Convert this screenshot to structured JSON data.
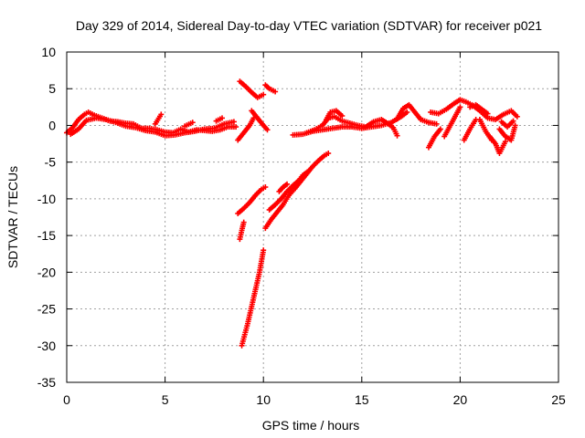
{
  "chart_data": {
    "type": "scatter",
    "title": "Day 329 of 2014, Sidereal Day-to-day VTEC variation (SDTVAR) for receiver p021",
    "xlabel": "GPS time / hours",
    "ylabel": "SDTVAR / TECUs",
    "xlim": [
      0,
      25
    ],
    "ylim": [
      -35,
      10
    ],
    "xticks": [
      0,
      5,
      10,
      15,
      20,
      25
    ],
    "yticks": [
      10,
      5,
      0,
      -5,
      -10,
      -15,
      -20,
      -25,
      -30,
      -35
    ],
    "grid": true,
    "marker": "+",
    "color": "#ff0000",
    "segments": [
      [
        [
          0,
          -1.0
        ],
        [
          0.3,
          -0.3
        ],
        [
          0.6,
          0.8
        ],
        [
          0.9,
          1.5
        ],
        [
          1.1,
          1.8
        ],
        [
          1.4,
          1.4
        ],
        [
          1.8,
          1.0
        ],
        [
          2.2,
          0.6
        ],
        [
          2.6,
          0.5
        ],
        [
          3.0,
          0.3
        ],
        [
          3.4,
          0.2
        ],
        [
          3.8,
          -0.4
        ],
        [
          4.2,
          -0.4
        ],
        [
          4.6,
          -0.6
        ],
        [
          5.0,
          -0.9
        ],
        [
          5.4,
          -1.0
        ],
        [
          5.8,
          -0.5
        ],
        [
          6.2,
          -0.9
        ],
        [
          6.6,
          -0.6
        ],
        [
          7.0,
          -0.7
        ],
        [
          7.4,
          -0.8
        ],
        [
          7.8,
          -0.6
        ],
        [
          8.2,
          -0.2
        ],
        [
          8.6,
          -0.2
        ]
      ],
      [
        [
          0.2,
          -1.2
        ],
        [
          0.6,
          -0.5
        ],
        [
          1.0,
          0.7
        ],
        [
          1.5,
          1.0
        ],
        [
          2.0,
          0.8
        ],
        [
          2.5,
          0.4
        ],
        [
          3.0,
          -0.1
        ],
        [
          3.5,
          -0.3
        ],
        [
          4.0,
          -0.7
        ],
        [
          4.5,
          -0.9
        ],
        [
          5.0,
          -1.4
        ],
        [
          5.5,
          -1.3
        ],
        [
          6.0,
          -1.0
        ],
        [
          6.5,
          -0.8
        ],
        [
          7.0,
          -0.5
        ],
        [
          7.5,
          -0.4
        ],
        [
          8.0,
          0.2
        ],
        [
          8.5,
          0.5
        ]
      ],
      [
        [
          4.5,
          0.2
        ],
        [
          4.8,
          1.5
        ]
      ],
      [
        [
          6.0,
          -0.1
        ],
        [
          6.4,
          0.4
        ]
      ],
      [
        [
          7.6,
          0.6
        ],
        [
          7.9,
          1.0
        ]
      ],
      [
        [
          8.8,
          6.0
        ],
        [
          9.1,
          5.3
        ],
        [
          9.4,
          4.5
        ],
        [
          9.7,
          3.8
        ],
        [
          10.0,
          4.2
        ]
      ],
      [
        [
          10.1,
          5.5
        ],
        [
          10.3,
          5.0
        ],
        [
          10.6,
          4.6
        ]
      ],
      [
        [
          9.4,
          2.0
        ],
        [
          9.7,
          1.0
        ],
        [
          10.0,
          0.0
        ],
        [
          10.2,
          -0.6
        ]
      ],
      [
        [
          8.7,
          -2.0
        ],
        [
          9.0,
          -1.0
        ],
        [
          9.3,
          0.0
        ],
        [
          9.5,
          1.0
        ]
      ],
      [
        [
          8.7,
          -12.0
        ],
        [
          9.0,
          -11.3
        ],
        [
          9.3,
          -10.5
        ],
        [
          9.6,
          -9.5
        ],
        [
          9.9,
          -8.7
        ],
        [
          10.1,
          -8.4
        ]
      ],
      [
        [
          8.8,
          -15.5
        ],
        [
          8.9,
          -14.3
        ],
        [
          9.0,
          -13.2
        ]
      ],
      [
        [
          8.9,
          -30.0
        ],
        [
          9.2,
          -27.0
        ],
        [
          9.5,
          -23.5
        ],
        [
          9.8,
          -20.0
        ],
        [
          10.0,
          -17.0
        ]
      ],
      [
        [
          10.1,
          -14.0
        ],
        [
          10.4,
          -12.8
        ],
        [
          10.7,
          -11.8
        ],
        [
          11.0,
          -10.8
        ],
        [
          11.3,
          -9.5
        ],
        [
          11.6,
          -8.6
        ],
        [
          11.9,
          -7.6
        ],
        [
          12.2,
          -6.6
        ],
        [
          12.5,
          -5.6
        ],
        [
          12.8,
          -4.8
        ],
        [
          13.1,
          -4.1
        ],
        [
          13.3,
          -3.8
        ]
      ],
      [
        [
          10.3,
          -11.5
        ],
        [
          10.6,
          -10.8
        ],
        [
          10.9,
          -10.0
        ],
        [
          11.2,
          -9.0
        ],
        [
          11.5,
          -8.2
        ],
        [
          11.8,
          -7.5
        ],
        [
          12.0,
          -6.8
        ],
        [
          12.3,
          -6.2
        ]
      ],
      [
        [
          10.8,
          -9.0
        ],
        [
          11.0,
          -8.4
        ],
        [
          11.2,
          -8.0
        ]
      ],
      [
        [
          11.5,
          -1.3
        ],
        [
          12.0,
          -1.2
        ],
        [
          12.5,
          -0.8
        ],
        [
          13.0,
          -0.6
        ],
        [
          13.5,
          -0.4
        ],
        [
          14.0,
          -0.2
        ],
        [
          14.5,
          -0.2
        ],
        [
          15.0,
          -0.4
        ],
        [
          15.5,
          -0.2
        ],
        [
          16.0,
          0.0
        ],
        [
          16.5,
          0.4
        ],
        [
          17.0,
          1.2
        ],
        [
          17.3,
          1.8
        ]
      ],
      [
        [
          12.2,
          -1.0
        ],
        [
          12.6,
          -0.6
        ],
        [
          13.0,
          0.0
        ],
        [
          13.3,
          1.0
        ],
        [
          13.6,
          1.2
        ],
        [
          14.0,
          0.6
        ],
        [
          14.4,
          0.3
        ],
        [
          14.8,
          0.0
        ],
        [
          15.2,
          -0.2
        ],
        [
          15.6,
          0.5
        ],
        [
          16.0,
          0.8
        ],
        [
          16.3,
          0.3
        ],
        [
          16.6,
          -0.3
        ],
        [
          16.8,
          -1.4
        ]
      ],
      [
        [
          13.2,
          0.8
        ],
        [
          13.4,
          1.8
        ],
        [
          13.7,
          2.0
        ],
        [
          14.0,
          1.3
        ]
      ],
      [
        [
          16.8,
          0.9
        ],
        [
          17.1,
          2.3
        ],
        [
          17.4,
          2.8
        ],
        [
          17.7,
          1.8
        ],
        [
          18.0,
          0.8
        ],
        [
          18.4,
          0.4
        ],
        [
          18.8,
          0.2
        ]
      ],
      [
        [
          18.5,
          1.8
        ],
        [
          18.9,
          1.6
        ],
        [
          19.3,
          2.2
        ],
        [
          19.7,
          3.0
        ],
        [
          20.0,
          3.5
        ],
        [
          20.3,
          3.2
        ],
        [
          20.6,
          2.8
        ],
        [
          21.0,
          2.0
        ],
        [
          21.4,
          1.0
        ],
        [
          21.8,
          0.8
        ],
        [
          22.2,
          1.5
        ],
        [
          22.6,
          2.0
        ],
        [
          22.9,
          1.2
        ]
      ],
      [
        [
          18.4,
          -3.0
        ],
        [
          18.7,
          -1.5
        ],
        [
          19.0,
          -0.5
        ]
      ],
      [
        [
          19.2,
          -1.5
        ],
        [
          19.5,
          0.0
        ],
        [
          19.8,
          1.5
        ],
        [
          20.0,
          2.5
        ]
      ],
      [
        [
          20.2,
          -2.0
        ],
        [
          20.5,
          -0.5
        ],
        [
          20.8,
          0.8
        ]
      ],
      [
        [
          21.5,
          -1.5
        ],
        [
          21.8,
          -2.5
        ],
        [
          22.0,
          -3.8
        ],
        [
          22.3,
          -2.2
        ]
      ],
      [
        [
          22.0,
          -0.5
        ],
        [
          22.3,
          -1.5
        ],
        [
          22.6,
          -2.0
        ],
        [
          22.8,
          0.0
        ]
      ],
      [
        [
          21.0,
          0.8
        ],
        [
          21.3,
          -0.8
        ],
        [
          21.6,
          -2.0
        ]
      ],
      [
        [
          22.1,
          0.5
        ],
        [
          22.4,
          -0.2
        ],
        [
          22.7,
          0.6
        ]
      ],
      [
        [
          20.5,
          2.5
        ],
        [
          20.8,
          2.8
        ],
        [
          21.1,
          2.2
        ],
        [
          21.4,
          1.6
        ]
      ]
    ]
  }
}
